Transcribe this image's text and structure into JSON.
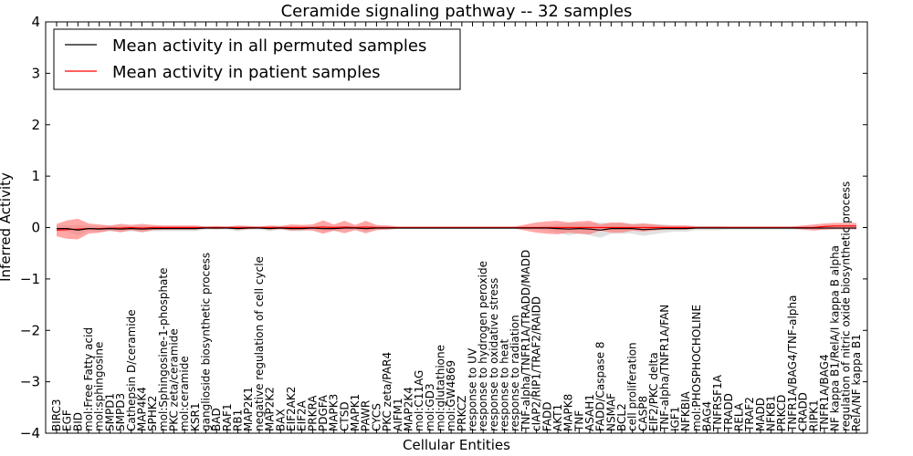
{
  "chart_data": {
    "type": "line",
    "title": "Ceramide signaling pathway -- 32 samples",
    "xlabel": "Cellular Entities",
    "ylabel": "Inferred Activity",
    "ylim": [
      -4,
      4
    ],
    "yticks": [
      "−4",
      "−3",
      "−2",
      "−1",
      "0",
      "1",
      "2",
      "3",
      "4"
    ],
    "legend_position": "upper-left",
    "categories": [
      "BIRC3",
      "EGF",
      "BID",
      "mol:Free Fatty acid",
      "mol:sphingosine",
      "SMPD1",
      "SMPD3",
      "Cathepsin D/ceramide",
      "MAP4K4",
      "SPHK2",
      "mol:Sphingosine-1-phosphate",
      "PKC zeta/ceramide",
      "mol:ceramide",
      "KSR1",
      "ganglioside biosynthetic process",
      "BAD",
      "RAF1",
      "RB1",
      "MAP2K1",
      "negative regulation of cell cycle",
      "MAP2K2",
      "BAX",
      "EIF2AK2",
      "EIF2A",
      "PRKRA",
      "PDGFA",
      "MAPK3",
      "CTSD",
      "MAPK1",
      "PAWR",
      "CYCS",
      "PKC zeta/PAR4",
      "AIFM1",
      "MAP2K4",
      "mol:C11AG",
      "mol:GD3",
      "mol:glutathione",
      "mol:GW4869",
      "PRKCZ",
      "response to UV",
      "response to hydrogen peroxide",
      "response to oxidative stress",
      "response to heat",
      "response to radiation",
      "TNF-alpha/TNFR1A/TRADD/MADD",
      "cIAP2/RIP1/TRAF2/RAIDD",
      "FADD",
      "AKT1",
      "MAPK8",
      "TNF",
      "ASAH1",
      "FADD/Caspase 8",
      "NSMAF",
      "BCL2",
      "cell proliferation",
      "CASP8",
      "EIF2/PKC delta",
      "TNF-alpha/TNFR1A/FAN",
      "IGF1",
      "NFKBIA",
      "mol:PHOSPHOCHOLINE",
      "BAG4",
      "TNFRSF1A",
      "TRADD",
      "RELA",
      "TRAF2",
      "MADD",
      "NFKB1",
      "PRKCD",
      "TNFR1A/BAG4/TNF-alpha",
      "CRADD",
      "RIPK1",
      "TNFR1A/BAG4",
      "NF kappa B1/RelA/I kappa B alpha",
      "regulation of nitric oxide biosynthetic process",
      "RelA/NF kappa B1"
    ],
    "series": [
      {
        "name": "Mean activity in all permuted samples",
        "color": "#000000",
        "band_color": "#c8c8c8",
        "values": [
          -0.02,
          -0.02,
          -0.05,
          -0.02,
          -0.03,
          -0.02,
          -0.03,
          -0.02,
          -0.03,
          -0.02,
          -0.02,
          -0.02,
          -0.02,
          -0.02,
          -0.01,
          -0.01,
          -0.01,
          -0.02,
          -0.01,
          -0.01,
          -0.02,
          -0.01,
          -0.02,
          -0.02,
          -0.01,
          -0.02,
          -0.02,
          -0.01,
          -0.01,
          -0.02,
          -0.01,
          -0.01,
          -0.01,
          -0.01,
          -0.01,
          -0.01,
          -0.01,
          -0.01,
          -0.01,
          -0.01,
          -0.01,
          -0.01,
          -0.01,
          -0.01,
          -0.01,
          -0.01,
          -0.01,
          -0.02,
          -0.03,
          -0.02,
          -0.03,
          -0.05,
          -0.02,
          -0.02,
          -0.02,
          -0.04,
          -0.03,
          -0.02,
          -0.02,
          -0.02,
          -0.01,
          -0.01,
          -0.01,
          -0.01,
          -0.01,
          -0.01,
          -0.01,
          -0.01,
          -0.01,
          -0.01,
          -0.01,
          -0.01,
          -0.01,
          -0.01,
          -0.01,
          -0.01
        ],
        "band": [
          0.06,
          0.06,
          0.1,
          0.05,
          0.06,
          0.05,
          0.06,
          0.05,
          0.06,
          0.05,
          0.05,
          0.05,
          0.05,
          0.05,
          0.03,
          0.03,
          0.03,
          0.05,
          0.03,
          0.03,
          0.05,
          0.03,
          0.05,
          0.05,
          0.03,
          0.05,
          0.05,
          0.03,
          0.03,
          0.05,
          0.03,
          0.03,
          0.02,
          0.02,
          0.02,
          0.02,
          0.02,
          0.02,
          0.02,
          0.02,
          0.02,
          0.02,
          0.02,
          0.02,
          0.02,
          0.02,
          0.05,
          0.08,
          0.12,
          0.1,
          0.12,
          0.15,
          0.1,
          0.1,
          0.1,
          0.12,
          0.1,
          0.08,
          0.06,
          0.06,
          0.04,
          0.04,
          0.04,
          0.03,
          0.03,
          0.03,
          0.03,
          0.03,
          0.03,
          0.03,
          0.03,
          0.03,
          0.03,
          0.03,
          0.03,
          0.03
        ]
      },
      {
        "name": "Mean activity in patient samples",
        "color": "#ff0000",
        "band_color": "#ff6b6b",
        "values": [
          -0.05,
          -0.04,
          -0.03,
          -0.02,
          -0.02,
          -0.01,
          -0.01,
          0.0,
          -0.01,
          0.0,
          0.0,
          0.0,
          0.0,
          0.0,
          0.0,
          0.0,
          0.0,
          0.0,
          0.0,
          0.0,
          0.0,
          0.0,
          0.0,
          0.0,
          0.0,
          0.01,
          0.0,
          0.01,
          0.0,
          0.01,
          0.0,
          0.0,
          0.0,
          0.0,
          0.0,
          0.0,
          0.0,
          0.0,
          0.0,
          0.0,
          0.0,
          0.0,
          0.0,
          0.0,
          0.0,
          0.0,
          0.0,
          0.0,
          0.0,
          0.0,
          0.0,
          0.0,
          0.0,
          0.0,
          0.0,
          0.0,
          0.0,
          0.0,
          0.0,
          0.0,
          0.0,
          0.0,
          0.0,
          0.0,
          0.0,
          0.0,
          0.0,
          0.0,
          0.0,
          0.0,
          0.0,
          0.0,
          0.02,
          0.03,
          0.03,
          0.03
        ],
        "band": [
          0.12,
          0.18,
          0.2,
          0.1,
          0.08,
          0.05,
          0.08,
          0.05,
          0.08,
          0.05,
          0.04,
          0.04,
          0.04,
          0.04,
          0.02,
          0.03,
          0.02,
          0.04,
          0.03,
          0.02,
          0.04,
          0.03,
          0.06,
          0.05,
          0.06,
          0.13,
          0.06,
          0.12,
          0.05,
          0.12,
          0.05,
          0.04,
          0.02,
          0.02,
          0.02,
          0.02,
          0.02,
          0.02,
          0.02,
          0.02,
          0.02,
          0.02,
          0.02,
          0.02,
          0.06,
          0.1,
          0.12,
          0.13,
          0.1,
          0.12,
          0.13,
          0.06,
          0.1,
          0.1,
          0.06,
          0.08,
          0.06,
          0.04,
          0.04,
          0.04,
          0.02,
          0.02,
          0.02,
          0.02,
          0.02,
          0.02,
          0.02,
          0.02,
          0.02,
          0.02,
          0.04,
          0.06,
          0.06,
          0.06,
          0.06,
          0.06
        ]
      }
    ]
  }
}
